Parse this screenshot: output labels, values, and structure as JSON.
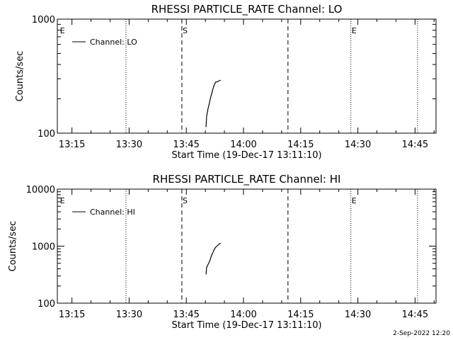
{
  "footer_date": "2-Sep-2022 12:20",
  "chart_data": [
    {
      "type": "line",
      "title": "RHESSI PARTICLE_RATE Channel: LO",
      "xlabel": "Start Time (19-Dec-17 13:11:10)",
      "ylabel": "Counts/sec",
      "yscale": "log",
      "xlim": [
        "13:11:10",
        "14:50:30"
      ],
      "ylim": [
        100,
        1000
      ],
      "xticks": [
        "13:15",
        "13:30",
        "13:45",
        "14:00",
        "14:15",
        "14:30",
        "14:45"
      ],
      "yticks": [
        "100",
        "1000"
      ],
      "legend": {
        "label": "Channel: LO",
        "placement": "top-left"
      },
      "line_color": "#000000",
      "series": [
        {
          "name": "Channel: LO",
          "x": [
            "13:50:10",
            "13:50:20",
            "13:50:40",
            "13:51:00",
            "13:51:20",
            "13:51:40",
            "13:52:00",
            "13:52:20",
            "13:52:40",
            "13:53:00",
            "13:53:20",
            "13:53:40",
            "13:54:00"
          ],
          "y": [
            113,
            140,
            162,
            180,
            202,
            222,
            245,
            265,
            280,
            282,
            284,
            288,
            292
          ]
        }
      ],
      "markers": [
        {
          "label": "E",
          "time": "13:11:40",
          "style": "none"
        },
        {
          "label": "",
          "time": "13:29:10",
          "style": "dotted"
        },
        {
          "label": "S",
          "time": "13:43:50",
          "style": "dashed"
        },
        {
          "label": "",
          "time": "14:11:40",
          "style": "dashed"
        },
        {
          "label": "E",
          "time": "14:28:10",
          "style": "dotted"
        },
        {
          "label": "",
          "time": "14:45:40",
          "style": "dotted"
        }
      ]
    },
    {
      "type": "line",
      "title": "RHESSI PARTICLE_RATE Channel: HI",
      "xlabel": "Start Time (19-Dec-17 13:11:10)",
      "ylabel": "Counts/sec",
      "yscale": "log",
      "xlim": [
        "13:11:10",
        "14:50:30"
      ],
      "ylim": [
        100,
        10000
      ],
      "xticks": [
        "13:15",
        "13:30",
        "13:45",
        "14:00",
        "14:15",
        "14:30",
        "14:45"
      ],
      "yticks": [
        "100",
        "1000",
        "10000"
      ],
      "legend": {
        "label": "Channel: HI",
        "placement": "top-left"
      },
      "line_color": "#000000",
      "series": [
        {
          "name": "Channel: HI",
          "x": [
            "13:50:10",
            "13:50:20",
            "13:50:40",
            "13:51:00",
            "13:51:20",
            "13:51:40",
            "13:52:00",
            "13:52:20",
            "13:52:40",
            "13:53:00",
            "13:53:20",
            "13:53:40",
            "13:54:00"
          ],
          "y": [
            320,
            420,
            470,
            520,
            600,
            700,
            780,
            880,
            950,
            1000,
            1050,
            1100,
            1130
          ]
        }
      ],
      "markers": [
        {
          "label": "E",
          "time": "13:11:40",
          "style": "none"
        },
        {
          "label": "",
          "time": "13:29:10",
          "style": "dotted"
        },
        {
          "label": "S",
          "time": "13:43:50",
          "style": "dashed"
        },
        {
          "label": "",
          "time": "14:11:40",
          "style": "dashed"
        },
        {
          "label": "E",
          "time": "14:28:10",
          "style": "dotted"
        },
        {
          "label": "",
          "time": "14:45:40",
          "style": "dotted"
        }
      ]
    }
  ]
}
